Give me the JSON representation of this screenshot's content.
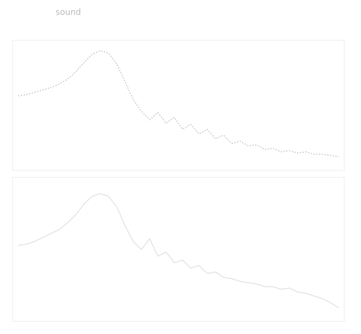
{
  "chart_data": [
    {
      "type": "line",
      "title": "sound",
      "x": [
        0,
        1,
        2,
        3,
        4,
        5,
        6,
        7,
        8,
        9,
        10,
        11,
        12,
        13,
        14,
        15,
        16,
        17,
        18,
        19,
        20,
        21,
        22,
        23,
        24,
        25,
        26,
        27,
        28,
        29,
        30,
        31,
        32,
        33,
        34,
        35,
        36,
        37,
        38,
        39
      ],
      "xlim": [
        0,
        39
      ],
      "ylim": [
        0,
        100
      ],
      "series": [
        {
          "color": "#cfcfcf",
          "values": [
            58,
            59,
            61,
            63,
            65,
            68,
            72,
            78,
            86,
            93,
            96,
            94,
            85,
            70,
            55,
            45,
            38,
            44,
            35,
            40,
            30,
            34,
            26,
            30,
            22,
            25,
            18,
            20,
            16,
            17,
            13,
            14,
            11,
            12,
            10,
            11,
            9,
            9,
            8,
            7
          ]
        }
      ]
    },
    {
      "type": "line",
      "x": [
        0,
        1,
        2,
        3,
        4,
        5,
        6,
        7,
        8,
        9,
        10,
        11,
        12,
        13,
        14,
        15,
        16,
        17,
        18,
        19,
        20,
        21,
        22,
        23,
        24,
        25,
        26,
        27,
        28,
        29,
        30,
        31,
        32,
        33,
        34,
        35,
        36,
        37,
        38,
        39
      ],
      "xlim": [
        0,
        39
      ],
      "ylim": [
        0,
        100
      ],
      "series": [
        {
          "color": "#e6e6e6",
          "values": [
            53,
            54,
            56,
            59,
            62,
            65,
            70,
            76,
            84,
            90,
            92,
            90,
            82,
            68,
            56,
            50,
            58,
            45,
            48,
            40,
            42,
            36,
            38,
            32,
            33,
            29,
            28,
            26,
            25,
            24,
            22,
            22,
            20,
            21,
            18,
            17,
            15,
            13,
            10,
            6
          ]
        }
      ]
    }
  ]
}
